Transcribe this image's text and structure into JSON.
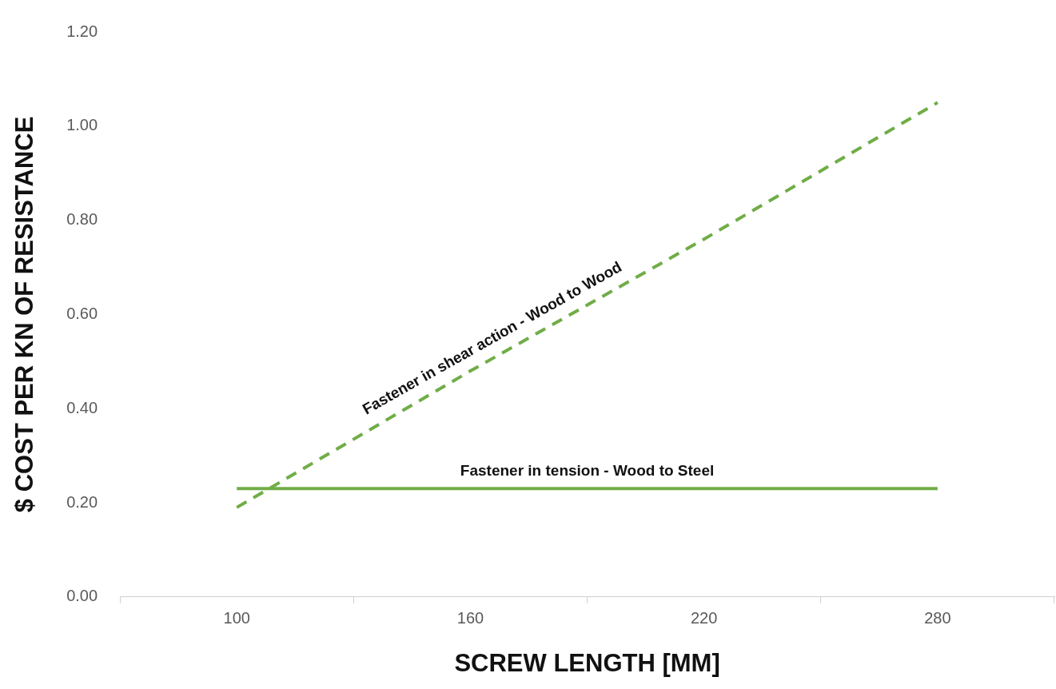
{
  "chart_data": {
    "type": "line",
    "xlabel": "SCREW LENGTH [MM]",
    "ylabel": "$ COST PER KN OF RESISTANCE",
    "categories": [
      "100",
      "160",
      "220",
      "280"
    ],
    "series": [
      {
        "name": "Fastener in shear action - Wood to Wood",
        "color": "#70ad47",
        "line_style": "dashed",
        "values": [
          0.19,
          0.48,
          0.76,
          1.05
        ]
      },
      {
        "name": "Fastener in tension - Wood to Steel",
        "color": "#70ad47",
        "line_style": "solid",
        "values": [
          0.23,
          0.23,
          0.23,
          0.23
        ]
      }
    ],
    "ylim": [
      0,
      1.2
    ],
    "yticks": [
      {
        "value": 0,
        "label": "0.00"
      },
      {
        "value": 0.2,
        "label": "0.20"
      },
      {
        "value": 0.4,
        "label": "0.40"
      },
      {
        "value": 0.6,
        "label": "0.60"
      },
      {
        "value": 0.8,
        "label": "0.80"
      },
      {
        "value": 1.0,
        "label": "1.00"
      },
      {
        "value": 1.2,
        "label": "1.20"
      }
    ],
    "grid": false,
    "legend": false,
    "marker": "none"
  }
}
